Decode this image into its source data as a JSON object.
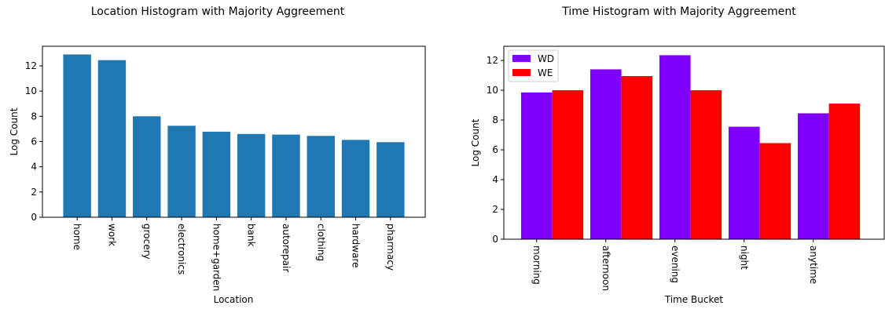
{
  "chart_data": [
    {
      "type": "bar",
      "title": "Location Histogram with Majority Aggreement",
      "xlabel": "Location",
      "ylabel": "Log Count",
      "ylim": [
        0,
        13.55
      ],
      "yticks": [
        0,
        2,
        4,
        6,
        8,
        10,
        12
      ],
      "categories": [
        "home",
        "work",
        "grocery",
        "electronics",
        "home+garden",
        "bank",
        "autorepair",
        "clothing",
        "hardware",
        "pharmacy"
      ],
      "values": [
        12.9,
        12.45,
        8.0,
        7.25,
        6.78,
        6.6,
        6.55,
        6.45,
        6.13,
        5.95
      ],
      "colors": [
        "#1f77b4"
      ],
      "grid": false
    },
    {
      "type": "bar",
      "title": "Time Histogram with Majority Aggreement",
      "xlabel": "Time Bucket",
      "ylabel": "Log Count",
      "ylim": [
        0,
        12.95
      ],
      "yticks": [
        0,
        2,
        4,
        6,
        8,
        10,
        12
      ],
      "categories": [
        "morning",
        "afternoon",
        "evening",
        "night",
        "anytime"
      ],
      "series": [
        {
          "name": "WD",
          "values": [
            9.85,
            11.4,
            12.35,
            7.55,
            8.45
          ],
          "color": "#8000ff"
        },
        {
          "name": "WE",
          "values": [
            10.0,
            10.95,
            10.0,
            6.45,
            9.1
          ],
          "color": "#ff0000"
        }
      ],
      "legend": "top-left",
      "grid": false
    }
  ]
}
